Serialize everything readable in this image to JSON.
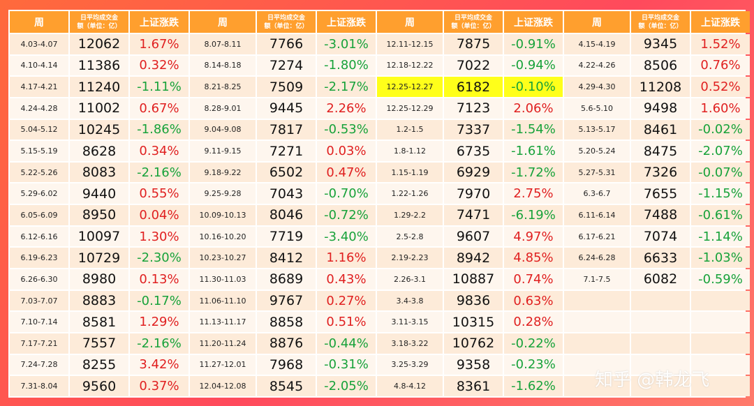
{
  "headers": {
    "week": "周",
    "volume_line1": "日平均成交金",
    "volume_line2": "额（单位：亿）",
    "change": "上证涨跌"
  },
  "colors": {
    "header_bg": "#ff9f2e",
    "up": "#e02020",
    "down": "#17a23a",
    "highlight": "#ffff1a"
  },
  "groups": [
    {
      "rows": [
        {
          "week": "4.03-4.07",
          "volume": "12062",
          "change": "1.67%"
        },
        {
          "week": "4.10-4.14",
          "volume": "11386",
          "change": "0.32%"
        },
        {
          "week": "4.17-4.21",
          "volume": "11240",
          "change": "-1.11%"
        },
        {
          "week": "4.24-4.28",
          "volume": "11002",
          "change": "0.67%"
        },
        {
          "week": "5.04-5.12",
          "volume": "10245",
          "change": "-1.86%"
        },
        {
          "week": "5.15-5.19",
          "volume": "8628",
          "change": "0.34%"
        },
        {
          "week": "5.22-5.26",
          "volume": "8083",
          "change": "-2.16%"
        },
        {
          "week": "5.29-6.02",
          "volume": "9440",
          "change": "0.55%"
        },
        {
          "week": "6.05-6.09",
          "volume": "8950",
          "change": "0.04%"
        },
        {
          "week": "6.12-6.16",
          "volume": "10097",
          "change": "1.30%"
        },
        {
          "week": "6.19-6.23",
          "volume": "10729",
          "change": "-2.30%"
        },
        {
          "week": "6.26-6.30",
          "volume": "8980",
          "change": "0.13%"
        },
        {
          "week": "7.03-7.07",
          "volume": "8883",
          "change": "-0.17%"
        },
        {
          "week": "7.10-7.14",
          "volume": "8581",
          "change": "1.29%"
        },
        {
          "week": "7.17-7.21",
          "volume": "7557",
          "change": "-2.16%"
        },
        {
          "week": "7.24-7.28",
          "volume": "8255",
          "change": "3.42%"
        },
        {
          "week": "7.31-8.04",
          "volume": "9560",
          "change": "0.37%"
        }
      ]
    },
    {
      "rows": [
        {
          "week": "8.07-8.11",
          "volume": "7766",
          "change": "-3.01%"
        },
        {
          "week": "8.14-8.18",
          "volume": "7274",
          "change": "-1.80%"
        },
        {
          "week": "8.21-8.25",
          "volume": "7509",
          "change": "-2.17%"
        },
        {
          "week": "8.28-9.01",
          "volume": "9445",
          "change": "2.26%"
        },
        {
          "week": "9.04-9.08",
          "volume": "7817",
          "change": "-0.53%"
        },
        {
          "week": "9.11-9.15",
          "volume": "7271",
          "change": "0.03%"
        },
        {
          "week": "9.18-9.22",
          "volume": "6502",
          "change": "0.47%"
        },
        {
          "week": "9.25-9.28",
          "volume": "7043",
          "change": "-0.70%"
        },
        {
          "week": "10.09-10.13",
          "volume": "8046",
          "change": "-0.72%"
        },
        {
          "week": "10.16-10.20",
          "volume": "7719",
          "change": "-3.40%"
        },
        {
          "week": "10.23-10.27",
          "volume": "8412",
          "change": "1.16%"
        },
        {
          "week": "11.30-11.03",
          "volume": "8689",
          "change": "0.43%"
        },
        {
          "week": "11.06-11.10",
          "volume": "9767",
          "change": "0.27%"
        },
        {
          "week": "11.13-11.17",
          "volume": "8858",
          "change": "0.51%"
        },
        {
          "week": "11.20-11.24",
          "volume": "8876",
          "change": "-0.44%"
        },
        {
          "week": "11.27-12.01",
          "volume": "7968",
          "change": "-0.31%"
        },
        {
          "week": "12.04-12.08",
          "volume": "8545",
          "change": "-2.05%"
        }
      ]
    },
    {
      "rows": [
        {
          "week": "12.11-12.15",
          "volume": "7875",
          "change": "-0.91%"
        },
        {
          "week": "12.18-12.22",
          "volume": "7022",
          "change": "-0.94%"
        },
        {
          "week": "12.25-12.27",
          "volume": "6182",
          "change": "-0.10%",
          "highlight": true
        },
        {
          "week": "12.25-12.29",
          "volume": "7123",
          "change": "2.06%"
        },
        {
          "week": "1.2-1.5",
          "volume": "7337",
          "change": "-1.54%"
        },
        {
          "week": "1.8-1.12",
          "volume": "6735",
          "change": "-1.61%"
        },
        {
          "week": "1.15-1.19",
          "volume": "6929",
          "change": "-1.72%"
        },
        {
          "week": "1.22-1.26",
          "volume": "7970",
          "change": "2.75%"
        },
        {
          "week": "1.29-2.2",
          "volume": "7471",
          "change": "-6.19%"
        },
        {
          "week": "2.5-2.8",
          "volume": "9607",
          "change": "4.97%"
        },
        {
          "week": "2.19-2.23",
          "volume": "8942",
          "change": "4.85%"
        },
        {
          "week": "2.26-3.1",
          "volume": "10887",
          "change": "0.74%"
        },
        {
          "week": "3.4-3.8",
          "volume": "9836",
          "change": "0.63%"
        },
        {
          "week": "3.11-3.15",
          "volume": "10315",
          "change": "0.28%"
        },
        {
          "week": "3.18-3.22",
          "volume": "10762",
          "change": "-0.22%"
        },
        {
          "week": "3.25-3.29",
          "volume": "9358",
          "change": "-0.23%"
        },
        {
          "week": "4.8-4.12",
          "volume": "8361",
          "change": "-1.62%"
        }
      ]
    },
    {
      "rows": [
        {
          "week": "4.15-4.19",
          "volume": "9345",
          "change": "1.52%"
        },
        {
          "week": "4.22-4.26",
          "volume": "8506",
          "change": "0.76%"
        },
        {
          "week": "4.29-4.30",
          "volume": "11208",
          "change": "0.52%"
        },
        {
          "week": "5.6-5.10",
          "volume": "9498",
          "change": "1.60%"
        },
        {
          "week": "5.13-5.17",
          "volume": "8461",
          "change": "-0.02%"
        },
        {
          "week": "5.20-5.24",
          "volume": "8475",
          "change": "-2.07%"
        },
        {
          "week": "5.27-5.31",
          "volume": "7326",
          "change": "-0.07%"
        },
        {
          "week": "6.3-6.7",
          "volume": "7655",
          "change": "-1.15%"
        },
        {
          "week": "6.11-6.14",
          "volume": "7488",
          "change": "-0.61%"
        },
        {
          "week": "6.17-6.21",
          "volume": "7074",
          "change": "-1.14%"
        },
        {
          "week": "6.24-6.28",
          "volume": "6633",
          "change": "-1.03%"
        },
        {
          "week": "7.1-7.5",
          "volume": "6082",
          "change": "-0.59%"
        }
      ]
    }
  ],
  "watermark": "知乎 @韩龙飞"
}
